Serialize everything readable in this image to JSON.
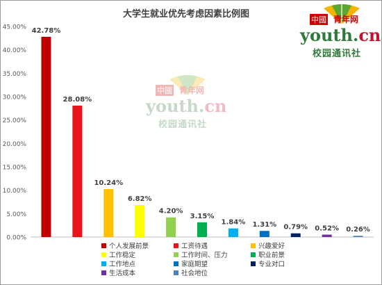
{
  "chart_data": {
    "type": "bar",
    "title": "大学生就业优先考虑因素比例图",
    "xlabel": "",
    "ylabel": "",
    "ylim": [
      0,
      45
    ],
    "y_ticks": [
      "0.00%",
      "5.00%",
      "10.00%",
      "15.00%",
      "20.00%",
      "25.00%",
      "30.00%",
      "35.00%",
      "40.00%",
      "45.00%"
    ],
    "grid": false,
    "legend_position": "bottom",
    "categories": [
      "个人发展前景",
      "工资待遇",
      "兴趣爱好",
      "工作稳定",
      "工作时间、压力",
      "职业前景",
      "工作地点",
      "家庭期望",
      "专业对口",
      "生活成本",
      "社会地位"
    ],
    "values": [
      42.78,
      28.08,
      10.24,
      6.82,
      4.2,
      3.15,
      1.84,
      1.31,
      0.79,
      0.52,
      0.26
    ],
    "data_labels": [
      "42.78%",
      "28.08%",
      "10.24%",
      "6.82%",
      "4.20%",
      "3.15%",
      "1.84%",
      "1.31%",
      "0.79%",
      "0.52%",
      "0.26%"
    ],
    "colors": [
      "#c00000",
      "#e8141c",
      "#ffc000",
      "#ffff00",
      "#92d050",
      "#00b050",
      "#00b0f0",
      "#0070c0",
      "#002060",
      "#7030a0",
      "#4f81bd"
    ]
  },
  "logo": {
    "badge": "中國",
    "name": "青年网",
    "domain_prefix": "y",
    "domain_main": "outh.",
    "domain_suffix": "cn",
    "tagline": "校园通讯社"
  }
}
